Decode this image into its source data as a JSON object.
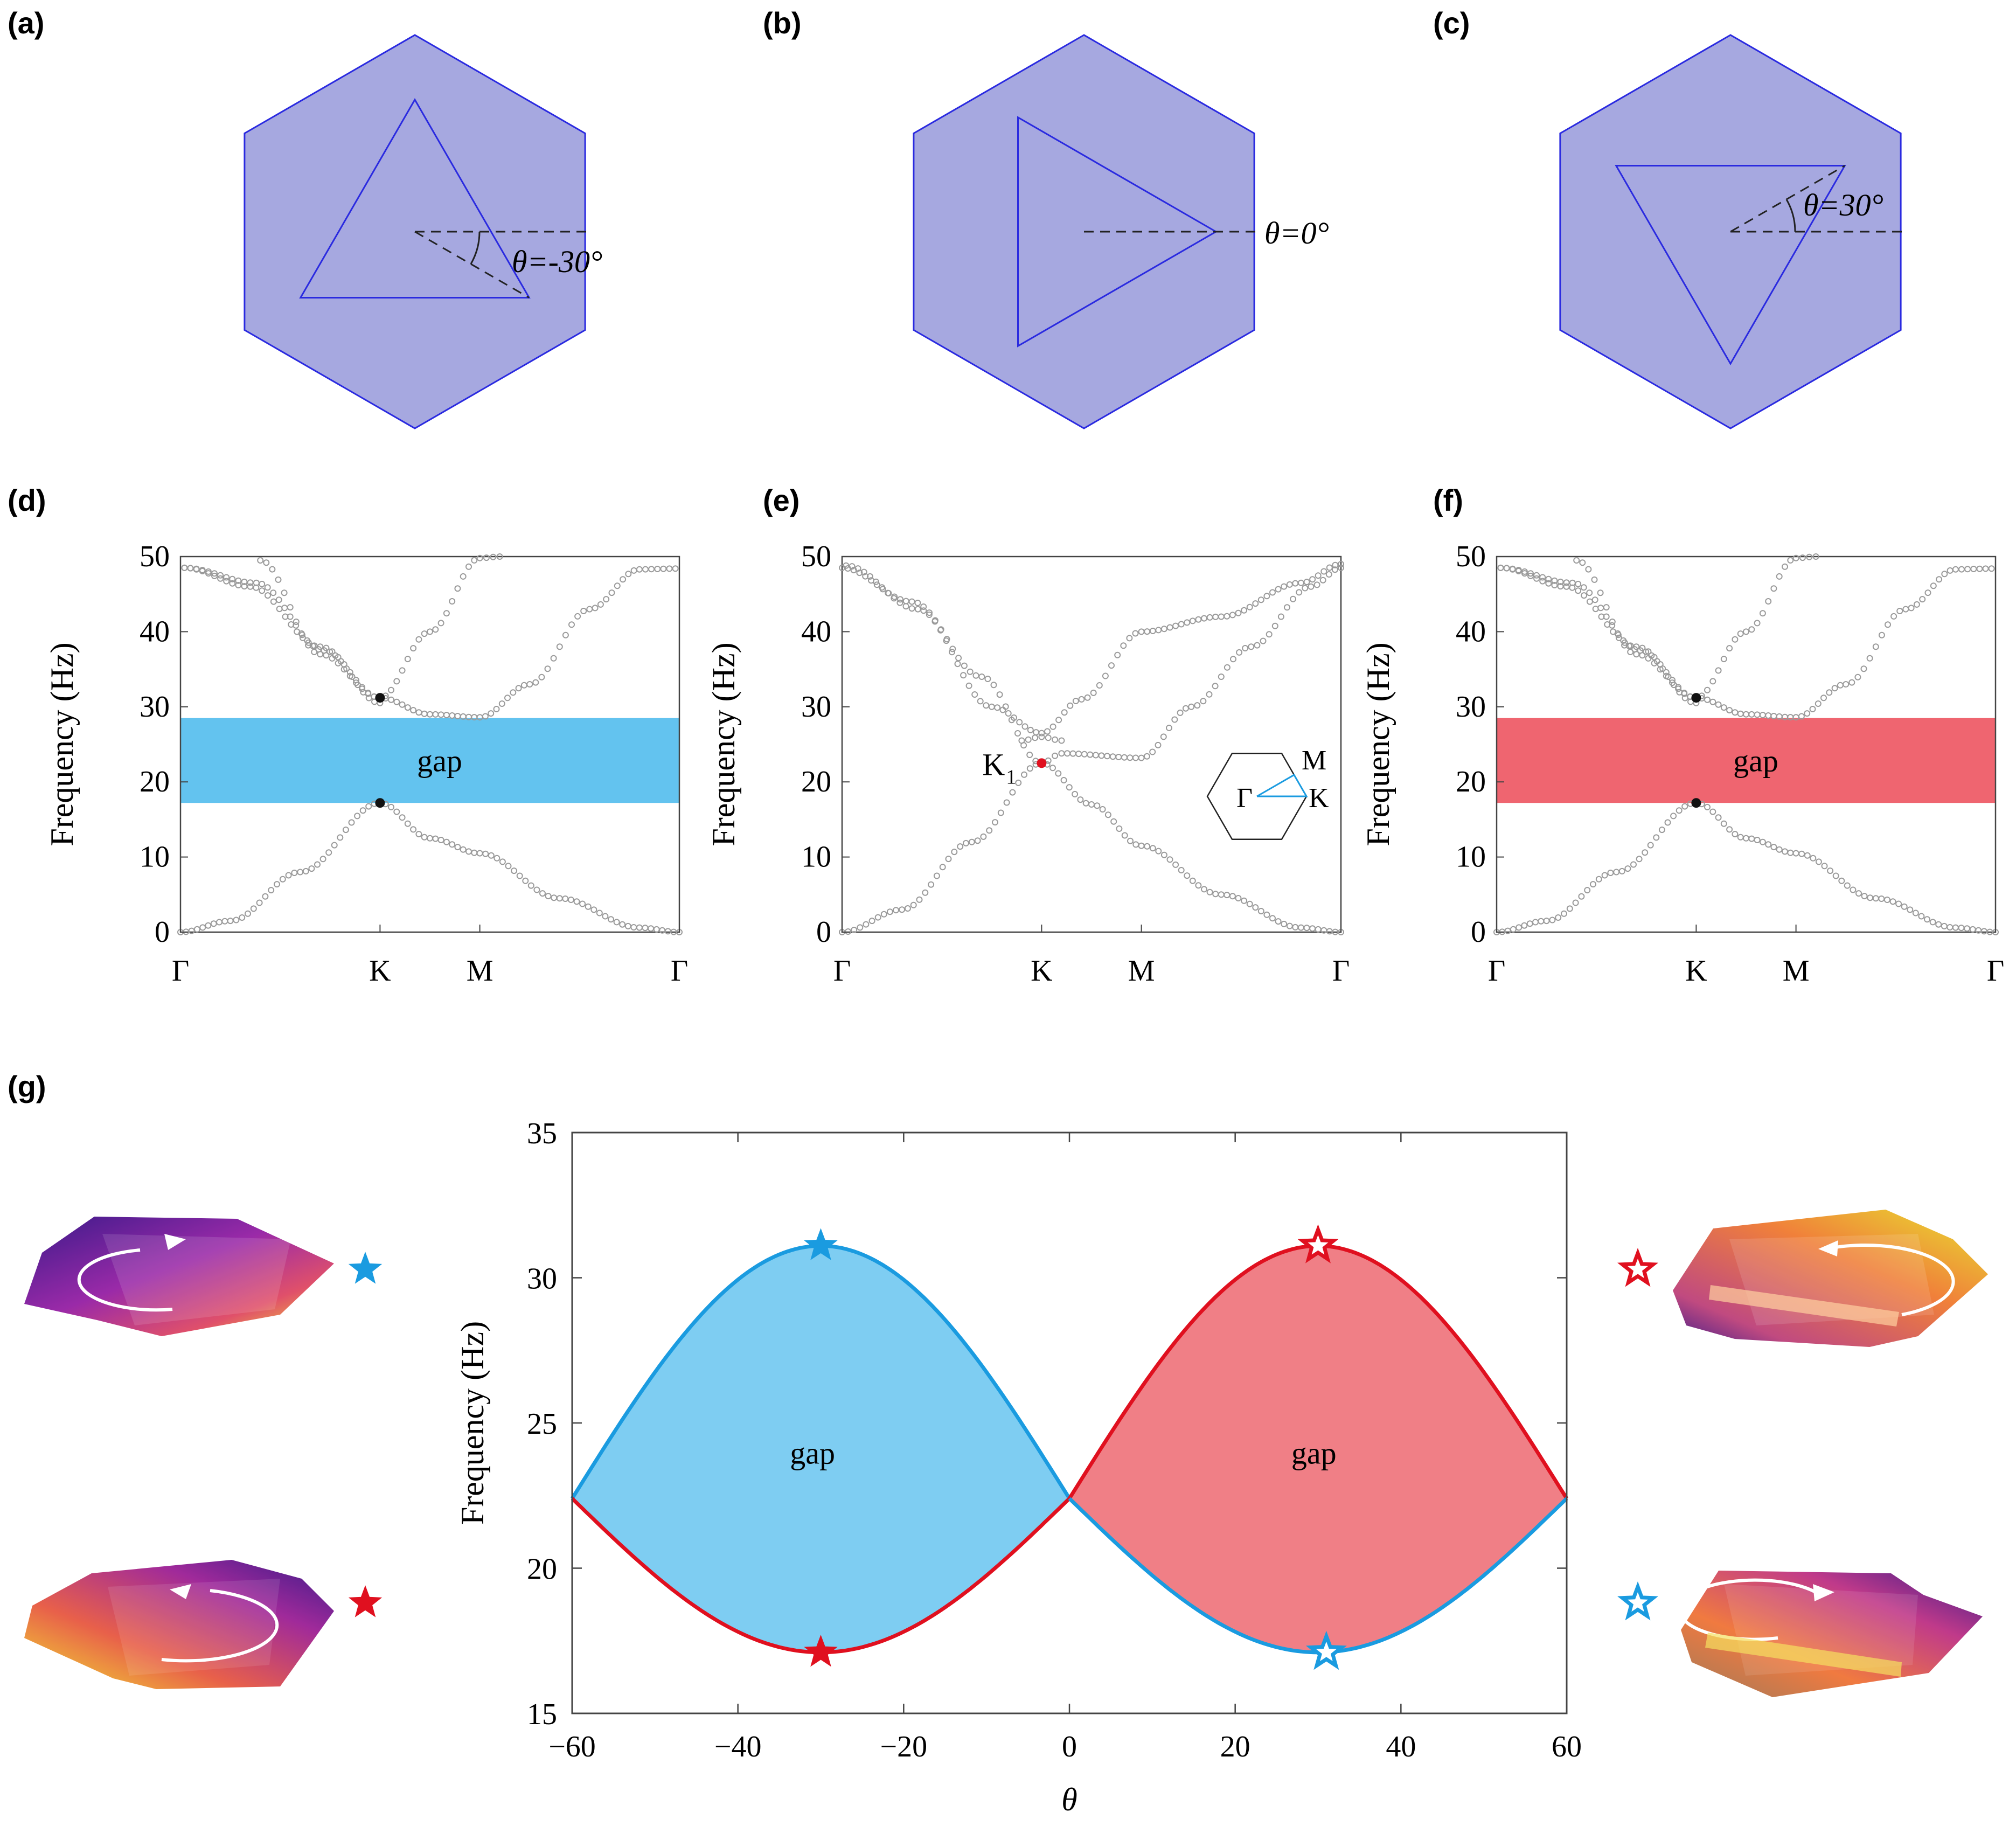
{
  "panel_labels": {
    "a": "(a)",
    "b": "(b)",
    "c": "(c)",
    "d": "(d)",
    "e": "(e)",
    "f": "(f)",
    "g": "(g)"
  },
  "unit_cells": {
    "a": {
      "angle_deg": -30,
      "label": "θ=-30°"
    },
    "b": {
      "angle_deg": 0,
      "label": "θ=0°"
    },
    "c": {
      "angle_deg": 30,
      "label": "θ=30°"
    }
  },
  "colors": {
    "hexagon_fill": "#a6a8e0",
    "hexagon_edge": "#2a2ae0",
    "blue_gap": "#63c3ef",
    "red_gap": "#ef6570",
    "blue_curve": "#1a9be0",
    "red_curve": "#e0101f",
    "blue_fill_g": "#7ecdf2",
    "red_fill_g": "#f07f86",
    "dots": "#9a9a9a"
  },
  "band_panels": {
    "ylabel": "Frequency (Hz)",
    "yticks": [
      "0",
      "10",
      "20",
      "30",
      "40",
      "50"
    ],
    "xticks": [
      "Γ",
      "K",
      "M",
      "Γ"
    ],
    "gap_label": "gap",
    "d": {
      "gap": [
        17.2,
        28.5
      ],
      "gap_color": "blue",
      "lower_K": 17.2,
      "upper_K": 31.2
    },
    "e": {
      "degenerate_K": 22.5,
      "dirac_label": "K",
      "dirac_sub": "1"
    },
    "f": {
      "gap": [
        17.2,
        28.5
      ],
      "gap_color": "red",
      "lower_K": 17.2,
      "upper_K": 31.2
    },
    "bz_inset": {
      "gamma": "Γ",
      "m": "M",
      "k": "K"
    }
  },
  "chart_data": {
    "type": "area",
    "title": "",
    "xlabel": "θ",
    "ylabel": "Frequency (Hz)",
    "xlim": [
      -60,
      60
    ],
    "ylim": [
      15,
      35
    ],
    "xticks": [
      "−60",
      "−40",
      "−20",
      "0",
      "20",
      "40",
      "60"
    ],
    "yticks": [
      "15",
      "20",
      "25",
      "30",
      "35"
    ],
    "series": [
      {
        "name": "upper band (θ<0, blue)",
        "x": [
          -60,
          -50,
          -40,
          -30,
          -20,
          -10,
          0
        ],
        "values": [
          22.4,
          26.6,
          29.6,
          31.1,
          29.6,
          26.6,
          22.4
        ]
      },
      {
        "name": "lower band (θ<0, red)",
        "x": [
          -60,
          -50,
          -40,
          -30,
          -20,
          -10,
          0
        ],
        "values": [
          22.4,
          19.2,
          17.6,
          17.1,
          17.6,
          19.2,
          22.4
        ]
      },
      {
        "name": "upper band (θ>0, red)",
        "x": [
          0,
          10,
          20,
          30,
          40,
          50,
          60
        ],
        "values": [
          22.4,
          26.6,
          29.6,
          31.1,
          29.6,
          26.6,
          22.4
        ]
      },
      {
        "name": "lower band (θ>0, blue)",
        "x": [
          0,
          10,
          20,
          30,
          40,
          50,
          60
        ],
        "values": [
          22.4,
          19.2,
          17.6,
          17.1,
          17.6,
          19.2,
          22.4
        ]
      }
    ],
    "gap_labels": [
      "gap",
      "gap"
    ],
    "markers": [
      {
        "x": -30,
        "y": 31.1,
        "color": "blue",
        "filled": true
      },
      {
        "x": -30,
        "y": 17.1,
        "color": "red",
        "filled": true
      },
      {
        "x": 30,
        "y": 31.1,
        "color": "red",
        "filled": false
      },
      {
        "x": 31,
        "y": 17.1,
        "color": "blue",
        "filled": false
      }
    ]
  }
}
